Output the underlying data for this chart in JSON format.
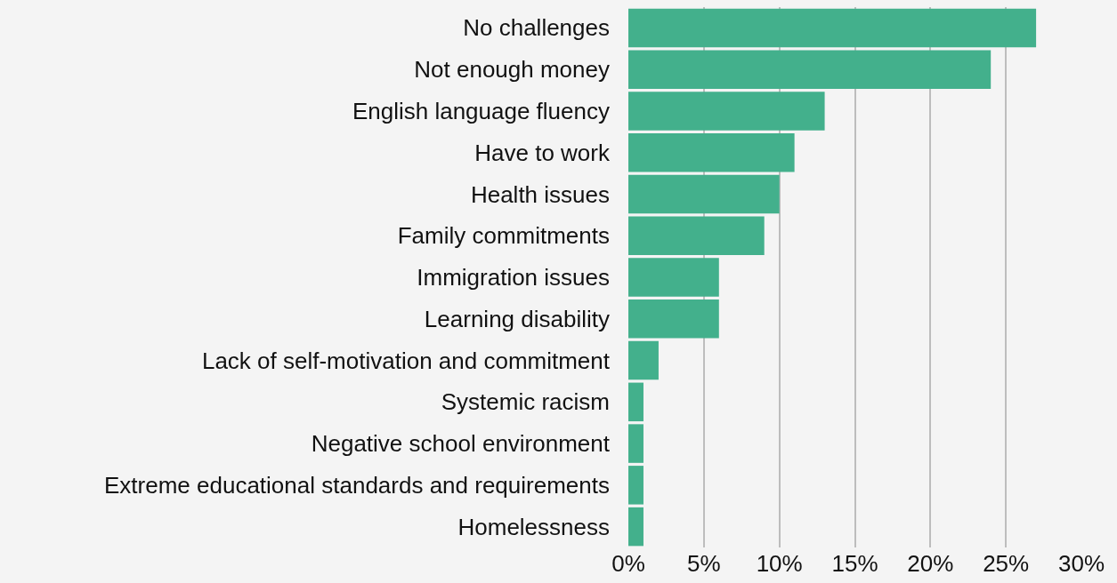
{
  "chart_data": {
    "type": "bar",
    "orientation": "horizontal",
    "categories": [
      "No challenges",
      "Not enough money",
      "English language fluency",
      "Have to work",
      "Health issues",
      "Family commitments",
      "Immigration issues",
      "Learning disability",
      "Lack of self-motivation and commitment",
      "Systemic racism",
      "Negative school environment",
      "Extreme educational standards and requirements",
      "Homelessness"
    ],
    "values": [
      27,
      24,
      13,
      11,
      10,
      9,
      6,
      6,
      2,
      1,
      1,
      1,
      1
    ],
    "color": "#43b08c",
    "xlim": [
      0,
      30
    ],
    "xticks": [
      {
        "value": 0,
        "label": "0%"
      },
      {
        "value": 5,
        "label": "5%"
      },
      {
        "value": 10,
        "label": "10%"
      },
      {
        "value": 15,
        "label": "15%"
      },
      {
        "value": 20,
        "label": "20%"
      },
      {
        "value": 25,
        "label": "25%"
      },
      {
        "value": 30,
        "label": "30%"
      }
    ],
    "grid": "x",
    "legend": false
  }
}
